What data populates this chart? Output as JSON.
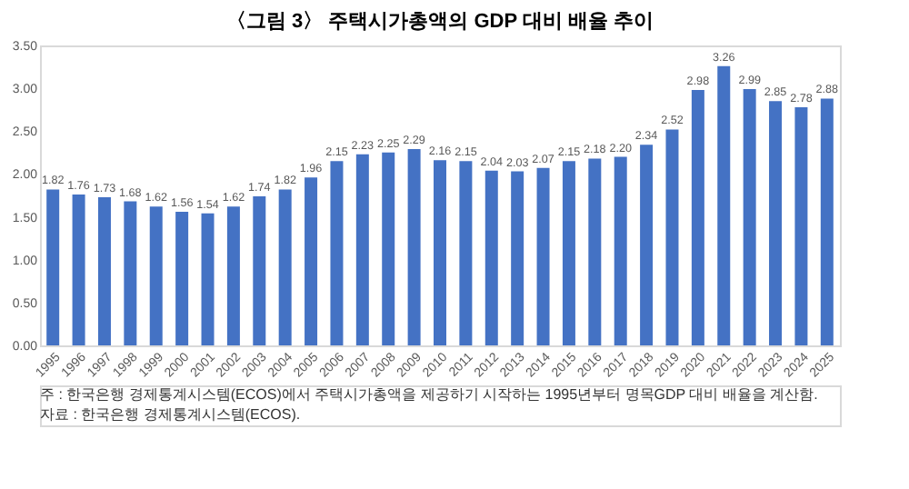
{
  "chart_data": {
    "type": "bar",
    "title": "〈그림 3〉 주택시가총액의 GDP 대비 배율 추이",
    "categories": [
      "1995",
      "1996",
      "1997",
      "1998",
      "1999",
      "2000",
      "2001",
      "2002",
      "2003",
      "2004",
      "2005",
      "2006",
      "2007",
      "2008",
      "2009",
      "2010",
      "2011",
      "2012",
      "2013",
      "2014",
      "2015",
      "2016",
      "2017",
      "2018",
      "2019",
      "2020",
      "2021",
      "2022",
      "2023",
      "2024",
      "2025"
    ],
    "values": [
      1.82,
      1.76,
      1.73,
      1.68,
      1.62,
      1.56,
      1.54,
      1.62,
      1.74,
      1.82,
      1.96,
      2.15,
      2.23,
      2.25,
      2.29,
      2.16,
      2.15,
      2.04,
      2.03,
      2.07,
      2.15,
      2.18,
      2.2,
      2.34,
      2.52,
      2.98,
      3.26,
      2.99,
      2.85,
      2.78,
      2.88
    ],
    "value_labels": [
      "1.82",
      "1.76",
      "1.73",
      "1.68",
      "1.62",
      "1.56",
      "1.54",
      "1.62",
      "1.74",
      "1.82",
      "1.96",
      "2.15",
      "2.23",
      "2.25",
      "2.29",
      "2.16",
      "2.15",
      "2.04",
      "2.03",
      "2.07",
      "2.15",
      "2.18",
      "2.20",
      "2.34",
      "2.52",
      "2.98",
      "3.26",
      "2.99",
      "2.85",
      "2.78",
      "2.88"
    ],
    "color": "#4472c4",
    "ylim": [
      0,
      3.5
    ],
    "yticks": [
      {
        "value": 0,
        "label": "0.00"
      },
      {
        "value": 0.5,
        "label": "0.50"
      },
      {
        "value": 1,
        "label": "1.00"
      },
      {
        "value": 1.5,
        "label": "1.50"
      },
      {
        "value": 2,
        "label": "2.00"
      },
      {
        "value": 2.5,
        "label": "2.50"
      },
      {
        "value": 3,
        "label": "3.00"
      },
      {
        "value": 3.5,
        "label": "3.50"
      }
    ],
    "grid": false,
    "annotations": [
      "주 : 한국은행 경제통계시스템(ECOS)에서 주택시가총액을 제공하기 시작하는 1995년부터 명목GDP 대비 배율을 계산함.",
      "자료 : 한국은행 경제통계시스템(ECOS)."
    ]
  }
}
